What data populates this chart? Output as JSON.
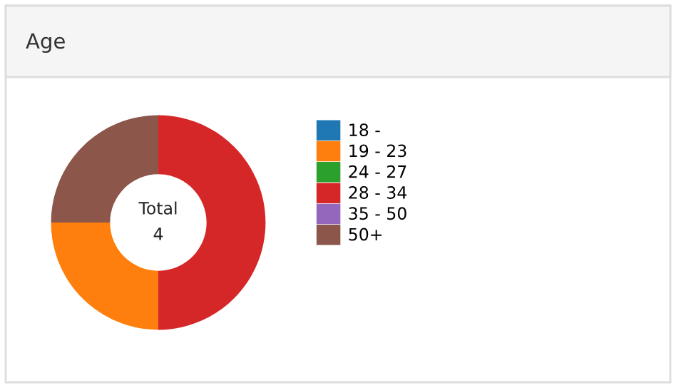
{
  "chart_data": {
    "type": "donut",
    "title": "Age",
    "categories": [
      "18 -",
      "19 - 23",
      "24 - 27",
      "28 - 34",
      "35 - 50",
      "50+"
    ],
    "values": [
      0,
      25,
      0,
      50,
      0,
      25
    ],
    "colors": [
      "#1f77b4",
      "#ff7f0e",
      "#2ca02c",
      "#d62728",
      "#9467bd",
      "#8c564b"
    ],
    "annotations": [
      "Total",
      "4"
    ],
    "legend": "right"
  }
}
